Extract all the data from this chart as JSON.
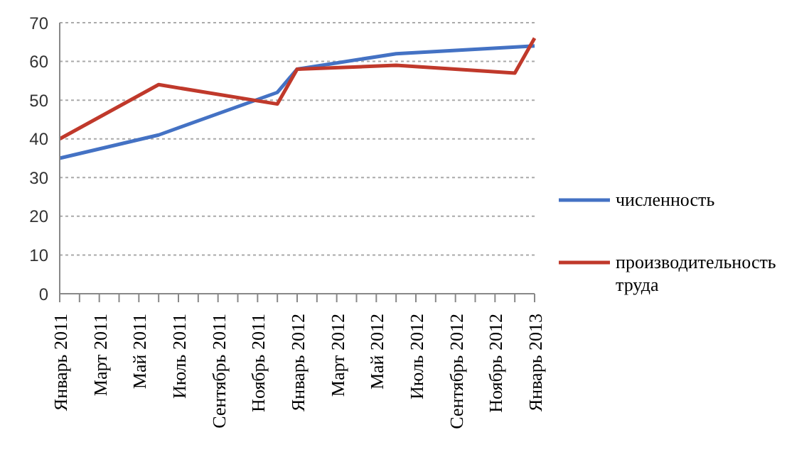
{
  "chart_data": {
    "type": "line",
    "categories": [
      "Январь 2011",
      null,
      "Март 2011",
      null,
      "Май 2011",
      null,
      "Июль 2011",
      null,
      "Сентябрь 2011",
      null,
      "Ноябрь 2011",
      null,
      "Январь 2012",
      null,
      "Март 2012",
      null,
      "Май 2012",
      null,
      "Июль 2012",
      null,
      "Сентябрь 2012",
      null,
      "Ноябрь 2012",
      null,
      "Январь 2013"
    ],
    "series": [
      {
        "name": "численность",
        "color": "#4472c4",
        "values": [
          35,
          null,
          null,
          null,
          null,
          41,
          null,
          null,
          null,
          null,
          null,
          52,
          58,
          null,
          null,
          null,
          null,
          62,
          null,
          null,
          null,
          null,
          null,
          null,
          64
        ]
      },
      {
        "name": "производительность труда",
        "color": "#c0392b",
        "values": [
          40,
          null,
          null,
          null,
          null,
          54,
          null,
          null,
          null,
          null,
          null,
          49,
          58,
          null,
          null,
          null,
          null,
          59,
          null,
          null,
          null,
          null,
          null,
          57,
          66
        ]
      }
    ],
    "ylim": [
      0,
      70
    ],
    "yticks": [
      0,
      10,
      20,
      30,
      40,
      50,
      60,
      70
    ],
    "grid": "y",
    "legend": "right",
    "marker": "none",
    "line_style": "solid"
  }
}
